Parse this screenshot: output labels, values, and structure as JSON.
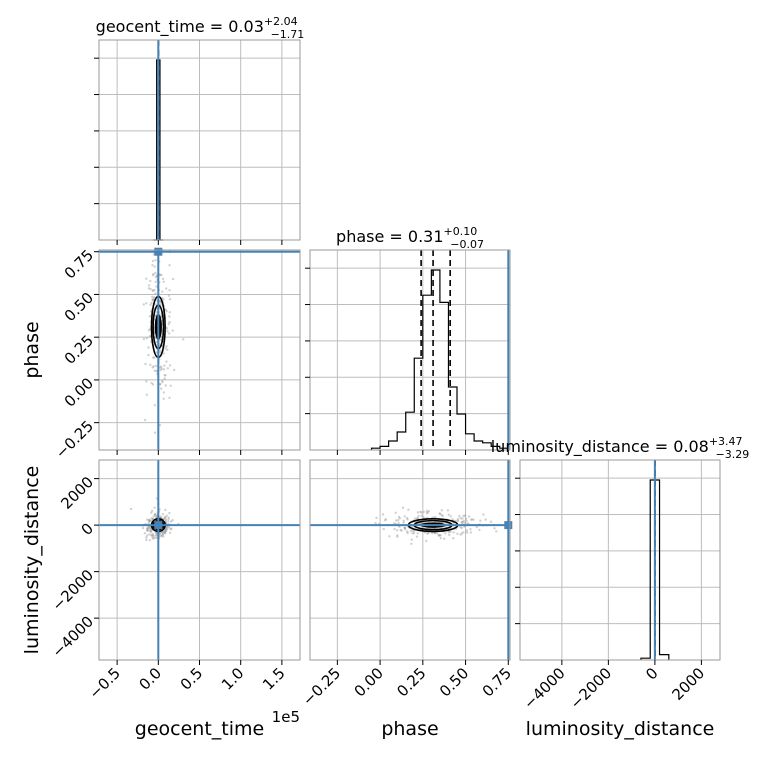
{
  "chart_data": {
    "type": "corner",
    "parameters": [
      "geocent_time",
      "phase",
      "luminosity_distance"
    ],
    "titles": [
      {
        "name": "geocent_time",
        "median": "0.03",
        "plus": "+2.04",
        "minus": "−1.71"
      },
      {
        "name": "phase",
        "median": "0.31",
        "plus": "+0.10",
        "minus": "−0.07"
      },
      {
        "name": "luminosity_distance",
        "median": "0.08",
        "plus": "+3.47",
        "minus": "−3.29"
      }
    ],
    "axis_labels": {
      "x": [
        "geocent_time",
        "phase",
        "luminosity_distance"
      ],
      "y": [
        "phase",
        "luminosity_distance"
      ]
    },
    "ranges": {
      "geocent_time": [
        -72000,
        172000
      ],
      "phase": [
        -0.41,
        0.76
      ],
      "luminosity_distance": [
        -5800,
        2800
      ]
    },
    "ticks": {
      "geocent_time": {
        "values": [
          -50000,
          0,
          50000,
          100000,
          150000
        ],
        "labels": [
          "−0.5",
          "0.0",
          "0.5",
          "1.0",
          "1.5"
        ],
        "offset_text": "1e5"
      },
      "phase": {
        "values": [
          -0.25,
          0.0,
          0.25,
          0.5,
          0.75
        ],
        "labels": [
          "−0.25",
          "0.00",
          "0.25",
          "0.50",
          "0.75"
        ]
      },
      "luminosity_distance": {
        "values": [
          -4000,
          -2000,
          0,
          2000
        ],
        "labels": [
          "−4000",
          "−2000",
          "0",
          "2000"
        ]
      }
    },
    "truths": {
      "geocent_time": 0,
      "phase": 0.75,
      "luminosity_distance": 0
    },
    "quantiles": {
      "geocent_time": [
        -1.71,
        0.03,
        2.04
      ],
      "phase": [
        0.24,
        0.31,
        0.41
      ],
      "luminosity_distance": [
        -3.29,
        0.08,
        3.47
      ]
    },
    "histograms": {
      "geocent_time": {
        "edges": [
          -6000,
          -2000,
          2000,
          6000
        ],
        "counts": [
          0,
          1.0,
          0
        ]
      },
      "phase": {
        "edges": [
          -0.05,
          0.0,
          0.05,
          0.1,
          0.15,
          0.2,
          0.25,
          0.3,
          0.35,
          0.4,
          0.45,
          0.5,
          0.55,
          0.6,
          0.65,
          0.7,
          0.75
        ],
        "counts": [
          0.01,
          0.02,
          0.05,
          0.1,
          0.21,
          0.51,
          0.86,
          1.0,
          0.82,
          0.35,
          0.2,
          0.09,
          0.05,
          0.04,
          0.02,
          0.01
        ]
      },
      "luminosity_distance": {
        "edges": [
          -600,
          -200,
          200,
          600
        ],
        "counts": [
          0.01,
          1.0,
          0.03
        ]
      }
    },
    "grid": true,
    "scatter_note": ""
  }
}
